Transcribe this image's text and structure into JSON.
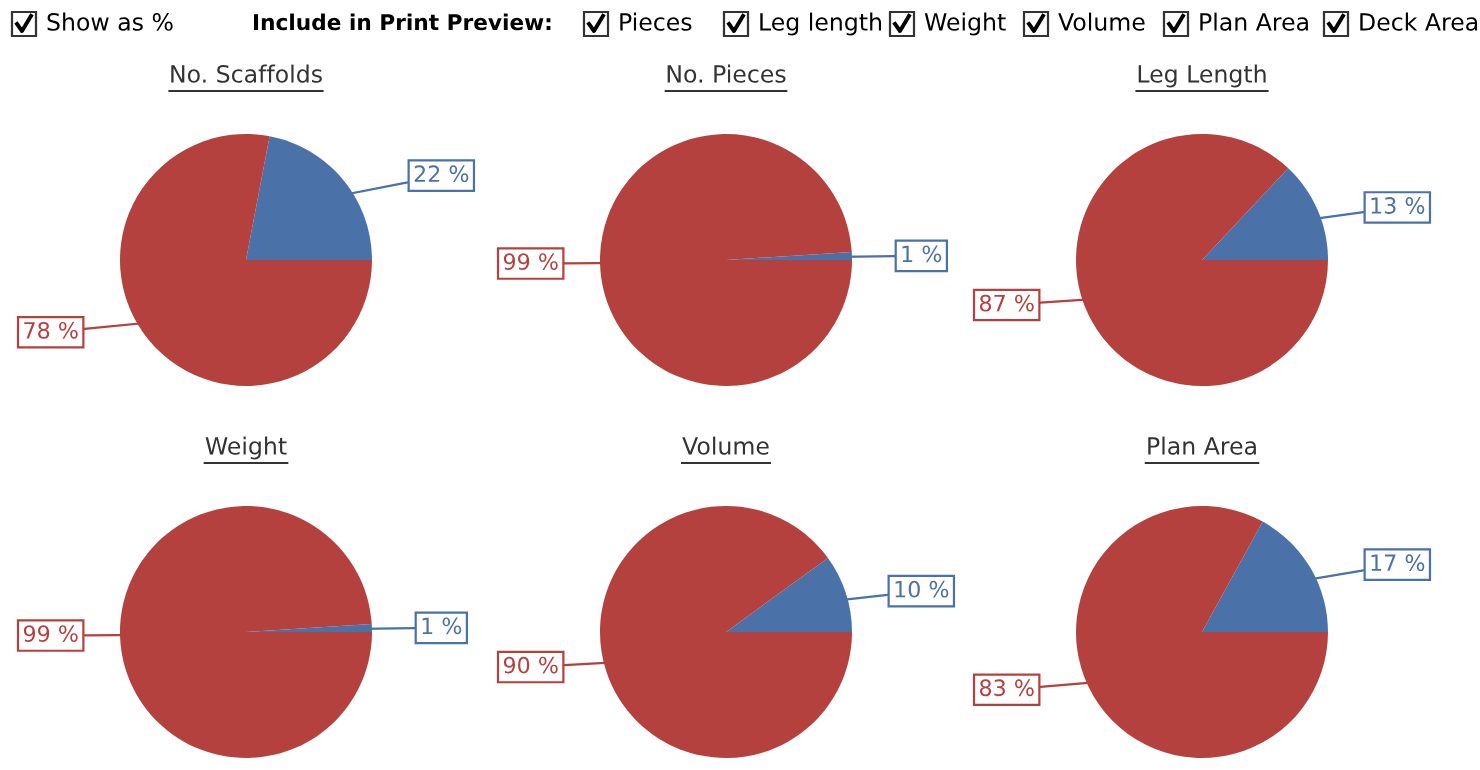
{
  "chart_data": [
    {
      "type": "other",
      "annotations": [
        "Show as %",
        "Include in Print Preview:",
        "Pieces",
        "Leg length",
        "Weight",
        "Volume",
        "Plan Area",
        "Deck Area"
      ]
    },
    {
      "type": "pie",
      "title": "No. Scaffolds",
      "categories": [
        null,
        null
      ],
      "values": [
        22,
        78
      ],
      "colors": [
        "#4a72a8",
        "#b5413f"
      ],
      "value_labels": [
        "22 %",
        "78 %"
      ]
    },
    {
      "type": "pie",
      "title": "No. Pieces",
      "categories": [
        null,
        null
      ],
      "values": [
        1,
        99
      ],
      "colors": [
        "#4a72a8",
        "#b5413f"
      ],
      "value_labels": [
        "1 %",
        "99 %"
      ]
    },
    {
      "type": "pie",
      "title": "Leg Length",
      "categories": [
        null,
        null
      ],
      "values": [
        13,
        87
      ],
      "colors": [
        "#4a72a8",
        "#b5413f"
      ],
      "value_labels": [
        "13 %",
        "87 %"
      ]
    },
    {
      "type": "pie",
      "title": "Weight",
      "categories": [
        null,
        null
      ],
      "values": [
        1,
        99
      ],
      "colors": [
        "#4a72a8",
        "#b5413f"
      ],
      "value_labels": [
        "1 %",
        "99 %"
      ]
    },
    {
      "type": "pie",
      "title": "Volume",
      "categories": [
        null,
        null
      ],
      "values": [
        10,
        90
      ],
      "colors": [
        "#4a72a8",
        "#b5413f"
      ],
      "value_labels": [
        "10 %",
        "90 %"
      ]
    },
    {
      "type": "pie",
      "title": "Plan Area",
      "categories": [
        null,
        null
      ],
      "values": [
        17,
        83
      ],
      "colors": [
        "#4a72a8",
        "#b5413f"
      ],
      "value_labels": [
        "17 %",
        "83 %"
      ]
    }
  ]
}
